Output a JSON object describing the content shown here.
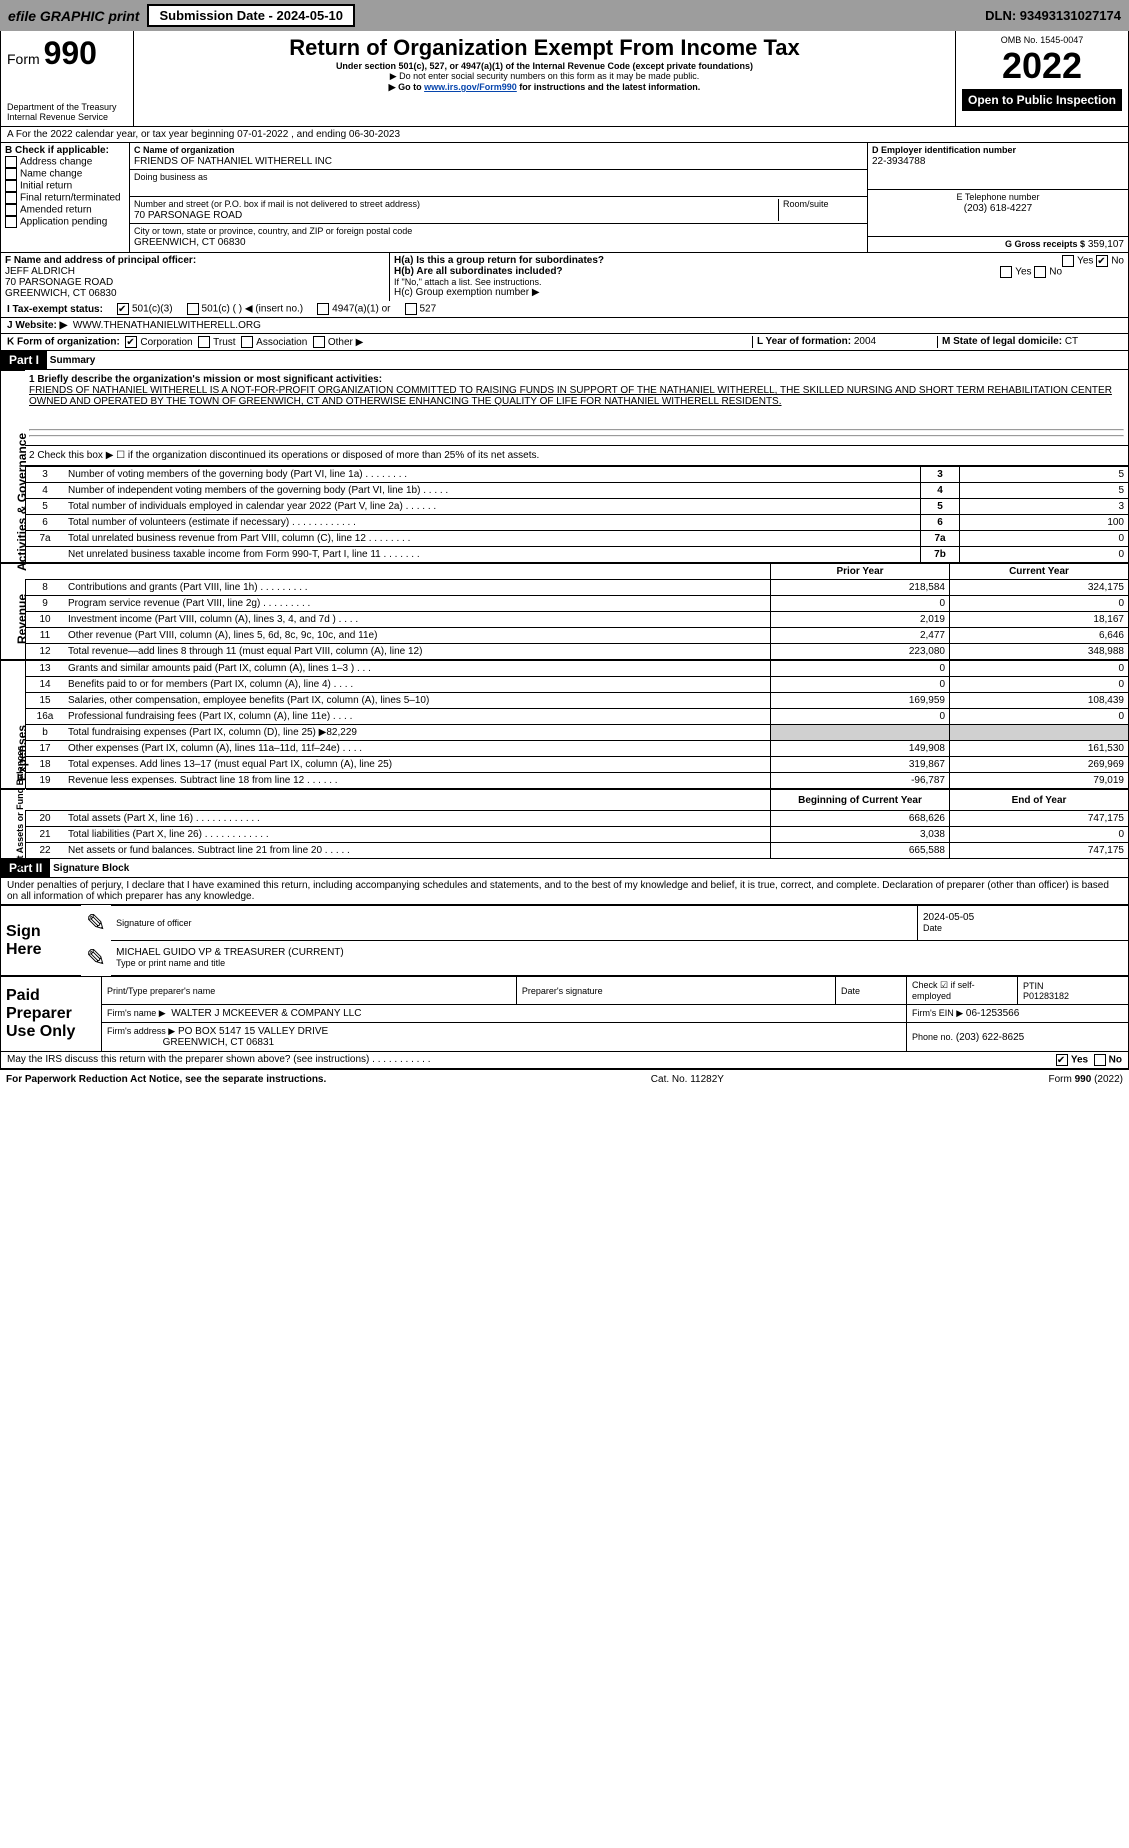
{
  "header": {
    "efile": "efile GRAPHIC print",
    "subdate": "Submission Date - 2024-05-10",
    "dln": "DLN: 93493131027174"
  },
  "top": {
    "formno": "990",
    "formword": "Form",
    "title": "Return of Organization Exempt From Income Tax",
    "subtitle": "Under section 501(c), 527, or 4947(a)(1) of the Internal Revenue Code (except private foundations)",
    "note1": "▶ Do not enter social security numbers on this form as it may be made public.",
    "note2": "▶ Go to ",
    "link": "www.irs.gov/Form990",
    "note2b": " for instructions and the latest information.",
    "dept": "Department of the Treasury",
    "irs": "Internal Revenue Service",
    "omb": "OMB No. 1545-0047",
    "year": "2022",
    "open": "Open to Public Inspection"
  },
  "a": {
    "text": "A For the 2022 calendar year, or tax year beginning 07-01-2022    , and ending 06-30-2023"
  },
  "b": {
    "label": "B Check if applicable:",
    "items": [
      "Address change",
      "Name change",
      "Initial return",
      "Final return/terminated",
      "Amended return",
      "Application pending"
    ]
  },
  "c": {
    "label": "C Name of organization",
    "name": "FRIENDS OF NATHANIEL WITHERELL INC",
    "dba": "Doing business as",
    "street_label": "Number and street (or P.O. box if mail is not delivered to street address)",
    "street": "70 PARSONAGE ROAD",
    "room": "Room/suite",
    "city_label": "City or town, state or province, country, and ZIP or foreign postal code",
    "city": "GREENWICH, CT  06830"
  },
  "d": {
    "label": "D Employer identification number",
    "val": "22-3934788"
  },
  "e": {
    "label": "E Telephone number",
    "val": "(203) 618-4227"
  },
  "g": {
    "label": "G Gross receipts $",
    "val": "359,107"
  },
  "f": {
    "label": "F  Name and address of principal officer:",
    "name": "JEFF ALDRICH",
    "addr1": "70 PARSONAGE ROAD",
    "addr2": "GREENWICH, CT  06830"
  },
  "h": {
    "a": "H(a)  Is this a group return for subordinates?",
    "b": "H(b)  Are all subordinates included?",
    "note": "If \"No,\" attach a list. See instructions.",
    "c": "H(c)  Group exemption number ▶",
    "yes": "Yes",
    "no": "No"
  },
  "i": {
    "label": "I  Tax-exempt status:",
    "o1": "501(c)(3)",
    "o2": "501(c) (  ) ◀ (insert no.)",
    "o3": "4947(a)(1) or",
    "o4": "527"
  },
  "j": {
    "label": "J  Website: ▶",
    "val": "WWW.THENATHANIELWITHERELL.ORG"
  },
  "k": {
    "label": "K Form of organization:",
    "o1": "Corporation",
    "o2": "Trust",
    "o3": "Association",
    "o4": "Other ▶"
  },
  "l": {
    "label": "L Year of formation: ",
    "val": "2004"
  },
  "m": {
    "label": "M State of legal domicile: ",
    "val": "CT"
  },
  "part1": {
    "hdr": "Part I",
    "title": "Summary"
  },
  "summary": {
    "q1": "1  Briefly describe the organization's mission or most significant activities:",
    "desc": "FRIENDS OF NATHANIEL WITHERELL IS A NOT-FOR-PROFIT ORGANIZATION COMMITTED TO RAISING FUNDS IN SUPPORT OF THE NATHANIEL WITHERELL, THE SKILLED NURSING AND SHORT TERM REHABILITATION CENTER OWNED AND OPERATED BY THE TOWN OF GREENWICH, CT AND OTHERWISE ENHANCING THE QUALITY OF LIFE FOR NATHANIEL WITHERELL RESIDENTS.",
    "q2": "2  Check this box ▶ ☐  if the organization discontinued its operations or disposed of more than 25% of its net assets.",
    "sideA": "Activities & Governance",
    "sideR": "Revenue",
    "sideE": "Expenses",
    "sideN": "Net Assets or Fund Balances",
    "rows_top": [
      {
        "n": "3",
        "t": "Number of voting members of the governing body (Part VI, line 1a)   .    .    .    .    .    .    .    .",
        "b": "3",
        "v": "5"
      },
      {
        "n": "4",
        "t": "Number of independent voting members of the governing body (Part VI, line 1b)   .    .    .    .    .",
        "b": "4",
        "v": "5"
      },
      {
        "n": "5",
        "t": "Total number of individuals employed in calendar year 2022 (Part V, line 2a)   .    .    .    .    .    .",
        "b": "5",
        "v": "3"
      },
      {
        "n": "6",
        "t": "Total number of volunteers (estimate if necessary)   .    .    .    .    .    .    .    .    .    .    .    .",
        "b": "6",
        "v": "100"
      },
      {
        "n": "7a",
        "t": "Total unrelated business revenue from Part VIII, column (C), line 12   .    .    .    .    .    .    .    .",
        "b": "7a",
        "v": "0"
      },
      {
        "n": "",
        "t": "Net unrelated business taxable income from Form 990-T, Part I, line 11   .    .    .    .    .    .    .",
        "b": "7b",
        "v": "0"
      }
    ],
    "h_prior": "Prior Year",
    "h_curr": "Current Year",
    "h_beg": "Beginning of Current Year",
    "h_end": "End of Year",
    "rev": [
      {
        "n": "8",
        "t": "Contributions and grants (Part VIII, line 1h)   .    .    .    .    .    .    .    .    .",
        "p": "218,584",
        "c": "324,175"
      },
      {
        "n": "9",
        "t": "Program service revenue (Part VIII, line 2g)   .    .    .    .    .    .    .    .    .",
        "p": "0",
        "c": "0"
      },
      {
        "n": "10",
        "t": "Investment income (Part VIII, column (A), lines 3, 4, and 7d )   .    .    .    .",
        "p": "2,019",
        "c": "18,167"
      },
      {
        "n": "11",
        "t": "Other revenue (Part VIII, column (A), lines 5, 6d, 8c, 9c, 10c, and 11e)",
        "p": "2,477",
        "c": "6,646"
      },
      {
        "n": "12",
        "t": "Total revenue—add lines 8 through 11 (must equal Part VIII, column (A), line 12)",
        "p": "223,080",
        "c": "348,988"
      }
    ],
    "exp": [
      {
        "n": "13",
        "t": "Grants and similar amounts paid (Part IX, column (A), lines 1–3 )   .    .    .",
        "p": "0",
        "c": "0"
      },
      {
        "n": "14",
        "t": "Benefits paid to or for members (Part IX, column (A), line 4)   .    .    .    .",
        "p": "0",
        "c": "0"
      },
      {
        "n": "15",
        "t": "Salaries, other compensation, employee benefits (Part IX, column (A), lines 5–10)",
        "p": "169,959",
        "c": "108,439"
      },
      {
        "n": "16a",
        "t": "Professional fundraising fees (Part IX, column (A), line 11e)   .    .    .    .",
        "p": "0",
        "c": "0"
      },
      {
        "n": "b",
        "t": "Total fundraising expenses (Part IX, column (D), line 25) ▶82,229",
        "p": "",
        "c": "",
        "grey": true
      },
      {
        "n": "17",
        "t": "Other expenses (Part IX, column (A), lines 11a–11d, 11f–24e)   .    .    .    .",
        "p": "149,908",
        "c": "161,530"
      },
      {
        "n": "18",
        "t": "Total expenses. Add lines 13–17 (must equal Part IX, column (A), line 25)",
        "p": "319,867",
        "c": "269,969"
      },
      {
        "n": "19",
        "t": "Revenue less expenses. Subtract line 18 from line 12   .    .    .    .    .    .",
        "p": "-96,787",
        "c": "79,019"
      }
    ],
    "net": [
      {
        "n": "20",
        "t": "Total assets (Part X, line 16)   .    .    .    .    .    .    .    .    .    .    .    .",
        "p": "668,626",
        "c": "747,175"
      },
      {
        "n": "21",
        "t": "Total liabilities (Part X, line 26)   .    .    .    .    .    .    .    .    .    .    .    .",
        "p": "3,038",
        "c": "0"
      },
      {
        "n": "22",
        "t": "Net assets or fund balances. Subtract line 21 from line 20   .    .    .    .    .",
        "p": "665,588",
        "c": "747,175"
      }
    ]
  },
  "part2": {
    "hdr": "Part II",
    "title": "Signature Block",
    "decl": "Under penalties of perjury, I declare that I have examined this return, including accompanying schedules and statements, and to the best of my knowledge and belief, it is true, correct, and complete. Declaration of preparer (other than officer) is based on all information of which preparer has any knowledge."
  },
  "sign": {
    "here": "Sign Here",
    "sig": "Signature of officer",
    "date": "Date",
    "dateval": "2024-05-05",
    "name": "MICHAEL GUIDO  VP & TREASURER (CURRENT)",
    "type": "Type or print name and title"
  },
  "paid": {
    "label": "Paid Preparer Use Only",
    "h1": "Print/Type preparer's name",
    "h2": "Preparer's signature",
    "h3": "Date",
    "h4": "Check ☑ if self-employed",
    "h5": "PTIN",
    "ptin": "P01283182",
    "firm": "Firm's name    ▶",
    "firmval": "WALTER J MCKEEVER & COMPANY LLC",
    "ein": "Firm's EIN ▶",
    "einval": "06-1253566",
    "addr": "Firm's address ▶",
    "addrval": "PO BOX 5147 15 VALLEY DRIVE",
    "addr2": "GREENWICH, CT  06831",
    "phone": "Phone no.",
    "phoneval": "(203) 622-8625",
    "may": "May the IRS discuss this return with the preparer shown above? (see instructions)   .    .    .    .    .    .    .    .    .    .    .",
    "yes": "Yes",
    "no": "No"
  },
  "footer": {
    "l": "For Paperwork Reduction Act Notice, see the separate instructions.",
    "c": "Cat. No. 11282Y",
    "r": "Form 990 (2022)"
  }
}
